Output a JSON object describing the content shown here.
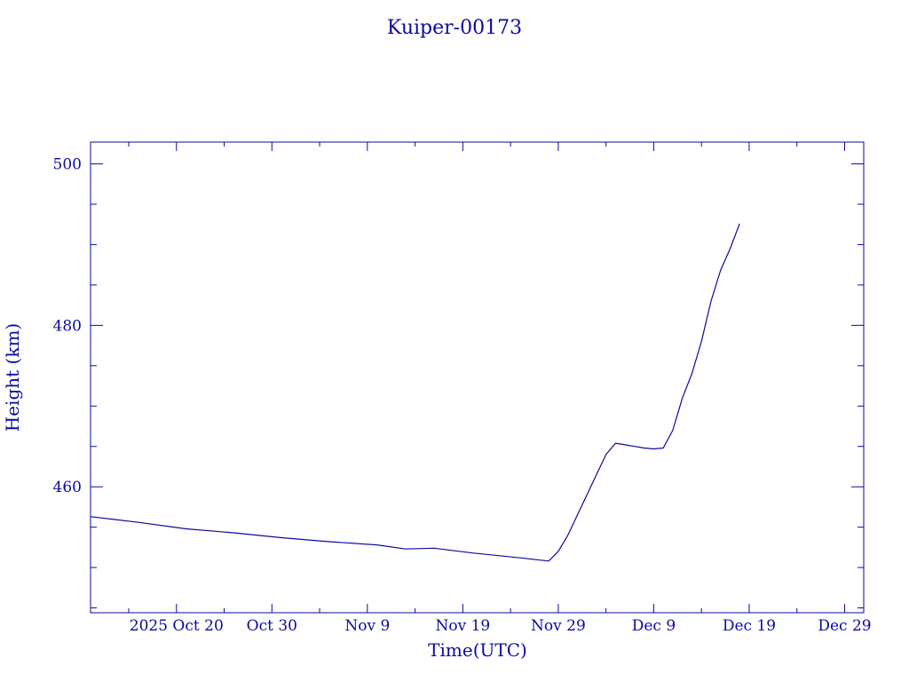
{
  "chart_data": {
    "type": "line",
    "title": "Kuiper-00173",
    "xlabel": "Time(UTC)",
    "ylabel": "Height (km)",
    "x_unit": "date",
    "xlim": [
      "2025-10-11",
      "2025-12-31"
    ],
    "ylim": [
      444.4,
      502.7
    ],
    "grid": false,
    "color": "#0a0aa0",
    "x_tick_labels": [
      {
        "date": "2025-10-20",
        "label": "2025 Oct 20"
      },
      {
        "date": "2025-10-30",
        "label": "Oct 30"
      },
      {
        "date": "2025-11-09",
        "label": "Nov  9"
      },
      {
        "date": "2025-11-19",
        "label": "Nov 19"
      },
      {
        "date": "2025-11-29",
        "label": "Nov 29"
      },
      {
        "date": "2025-12-09",
        "label": "Dec  9"
      },
      {
        "date": "2025-12-19",
        "label": "Dec 19"
      },
      {
        "date": "2025-12-29",
        "label": "Dec 29"
      }
    ],
    "y_tick_labels": [
      {
        "value": 460,
        "label": "460"
      },
      {
        "value": 480,
        "label": "480"
      },
      {
        "value": 500,
        "label": "500"
      }
    ],
    "series": [
      {
        "x": [
          "2025-10-11",
          "2025-10-16",
          "2025-10-21",
          "2025-10-26",
          "2025-10-31",
          "2025-11-05",
          "2025-11-10",
          "2025-11-13",
          "2025-11-16",
          "2025-11-20",
          "2025-11-25",
          "2025-11-28",
          "2025-11-29",
          "2025-11-30",
          "2025-12-01",
          "2025-12-02",
          "2025-12-03",
          "2025-12-04",
          "2025-12-05",
          "2025-12-06",
          "2025-12-07",
          "2025-12-08",
          "2025-12-09",
          "2025-12-10",
          "2025-12-11",
          "2025-12-12",
          "2025-12-13",
          "2025-12-14",
          "2025-12-15",
          "2025-12-16",
          "2025-12-17",
          "2025-12-18"
        ],
        "y": [
          456.3,
          455.6,
          454.8,
          454.3,
          453.7,
          453.2,
          452.8,
          452.3,
          452.4,
          451.8,
          451.2,
          450.8,
          452.0,
          454.0,
          456.5,
          459.0,
          461.5,
          464.0,
          465.4,
          465.2,
          465.0,
          464.8,
          464.7,
          464.8,
          467.0,
          471.0,
          474.0,
          478.0,
          483.0,
          486.8,
          489.5,
          492.6
        ]
      }
    ]
  }
}
